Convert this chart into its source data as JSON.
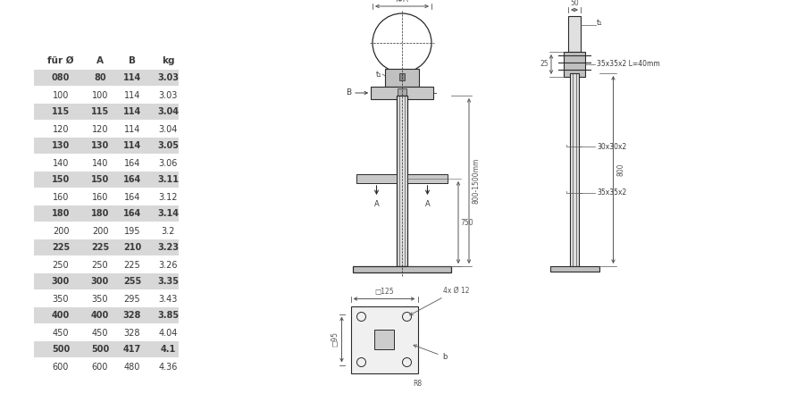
{
  "bg_color": "#ffffff",
  "table_headers": [
    "für Ø",
    "A",
    "B",
    "kg"
  ],
  "table_data": [
    [
      "080",
      "80",
      "114",
      "3.03"
    ],
    [
      "100",
      "100",
      "114",
      "3.03"
    ],
    [
      "115",
      "115",
      "114",
      "3.04"
    ],
    [
      "120",
      "120",
      "114",
      "3.04"
    ],
    [
      "130",
      "130",
      "114",
      "3.05"
    ],
    [
      "140",
      "140",
      "164",
      "3.06"
    ],
    [
      "150",
      "150",
      "164",
      "3.11"
    ],
    [
      "160",
      "160",
      "164",
      "3.12"
    ],
    [
      "180",
      "180",
      "164",
      "3.14"
    ],
    [
      "200",
      "200",
      "195",
      "3.2"
    ],
    [
      "225",
      "225",
      "210",
      "3.23"
    ],
    [
      "250",
      "250",
      "225",
      "3.26"
    ],
    [
      "300",
      "300",
      "255",
      "3.35"
    ],
    [
      "350",
      "350",
      "295",
      "3.43"
    ],
    [
      "400",
      "400",
      "328",
      "3.85"
    ],
    [
      "450",
      "450",
      "328",
      "4.04"
    ],
    [
      "500",
      "500",
      "417",
      "4.1"
    ],
    [
      "600",
      "600",
      "480",
      "4.36"
    ]
  ],
  "shaded_rows": [
    0,
    2,
    4,
    6,
    8,
    10,
    12,
    14,
    16
  ],
  "shade_color": "#d8d8d8",
  "text_color": "#3a3a3a",
  "line_color": "#2a2a2a",
  "dim_color": "#555555"
}
